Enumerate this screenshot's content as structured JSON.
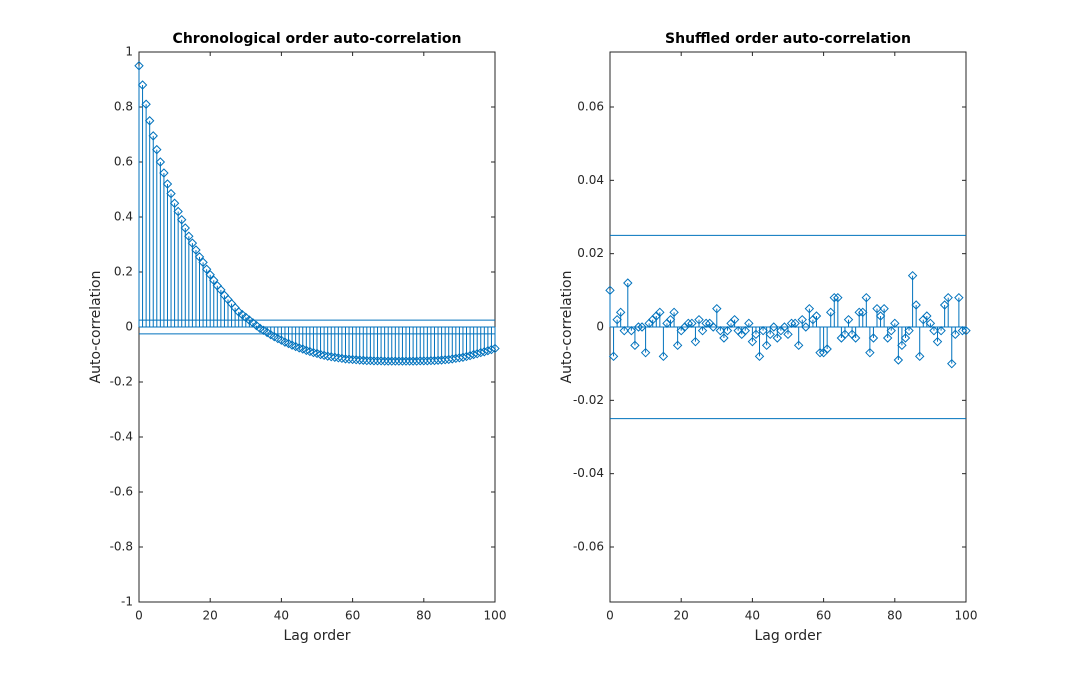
{
  "chart_data": [
    {
      "type": "stem",
      "title": "Chronological order auto-correlation",
      "xlabel": "Lag order",
      "ylabel": "Auto-correlation",
      "color": "#0072bd",
      "x": [
        0,
        1,
        2,
        3,
        4,
        5,
        6,
        7,
        8,
        9,
        10,
        11,
        12,
        13,
        14,
        15,
        16,
        17,
        18,
        19,
        20,
        21,
        22,
        23,
        24,
        25,
        26,
        27,
        28,
        29,
        30,
        31,
        32,
        33,
        34,
        35,
        36,
        37,
        38,
        39,
        40,
        41,
        42,
        43,
        44,
        45,
        46,
        47,
        48,
        49,
        50,
        51,
        52,
        53,
        54,
        55,
        56,
        57,
        58,
        59,
        60,
        61,
        62,
        63,
        64,
        65,
        66,
        67,
        68,
        69,
        70,
        71,
        72,
        73,
        74,
        75,
        76,
        77,
        78,
        79,
        80,
        81,
        82,
        83,
        84,
        85,
        86,
        87,
        88,
        89,
        90,
        91,
        92,
        93,
        94,
        95,
        96,
        97,
        98,
        99,
        100
      ],
      "values": [
        0.95,
        0.88,
        0.81,
        0.75,
        0.695,
        0.645,
        0.6,
        0.56,
        0.52,
        0.485,
        0.45,
        0.42,
        0.39,
        0.36,
        0.33,
        0.305,
        0.28,
        0.255,
        0.235,
        0.21,
        0.19,
        0.17,
        0.15,
        0.135,
        0.115,
        0.1,
        0.085,
        0.07,
        0.055,
        0.045,
        0.035,
        0.025,
        0.015,
        0.005,
        -0.005,
        -0.012,
        -0.02,
        -0.028,
        -0.035,
        -0.042,
        -0.048,
        -0.055,
        -0.06,
        -0.066,
        -0.071,
        -0.076,
        -0.08,
        -0.085,
        -0.089,
        -0.093,
        -0.096,
        -0.1,
        -0.103,
        -0.106,
        -0.108,
        -0.11,
        -0.112,
        -0.114,
        -0.116,
        -0.117,
        -0.118,
        -0.119,
        -0.12,
        -0.121,
        -0.122,
        -0.122,
        -0.123,
        -0.123,
        -0.123,
        -0.124,
        -0.124,
        -0.124,
        -0.124,
        -0.124,
        -0.124,
        -0.124,
        -0.124,
        -0.124,
        -0.124,
        -0.123,
        -0.123,
        -0.123,
        -0.122,
        -0.122,
        -0.121,
        -0.12,
        -0.119,
        -0.118,
        -0.116,
        -0.114,
        -0.112,
        -0.11,
        -0.107,
        -0.104,
        -0.1,
        -0.097,
        -0.093,
        -0.09,
        -0.086,
        -0.082,
        -0.078
      ],
      "bounds": [
        0.025,
        -0.025
      ],
      "xlim": [
        0,
        100
      ],
      "xticks": [
        0,
        20,
        40,
        60,
        80,
        100
      ],
      "ylim": [
        -1,
        1
      ],
      "yticks": [
        -1,
        -0.8,
        -0.6,
        -0.4,
        -0.2,
        0,
        0.2,
        0.4,
        0.6,
        0.8,
        1
      ]
    },
    {
      "type": "stem",
      "title": "Shuffled order auto-correlation",
      "xlabel": "Lag order",
      "ylabel": "Auto-correlation",
      "color": "#0072bd",
      "x": [
        0,
        1,
        2,
        3,
        4,
        5,
        6,
        7,
        8,
        9,
        10,
        11,
        12,
        13,
        14,
        15,
        16,
        17,
        18,
        19,
        20,
        21,
        22,
        23,
        24,
        25,
        26,
        27,
        28,
        29,
        30,
        31,
        32,
        33,
        34,
        35,
        36,
        37,
        38,
        39,
        40,
        41,
        42,
        43,
        44,
        45,
        46,
        47,
        48,
        49,
        50,
        51,
        52,
        53,
        54,
        55,
        56,
        57,
        58,
        59,
        60,
        61,
        62,
        63,
        64,
        65,
        66,
        67,
        68,
        69,
        70,
        71,
        72,
        73,
        74,
        75,
        76,
        77,
        78,
        79,
        80,
        81,
        82,
        83,
        84,
        85,
        86,
        87,
        88,
        89,
        90,
        91,
        92,
        93,
        94,
        95,
        96,
        97,
        98,
        99,
        100
      ],
      "values": [
        0.01,
        -0.008,
        0.002,
        0.004,
        -0.001,
        0.012,
        -0.001,
        -0.005,
        0,
        0,
        -0.007,
        0.001,
        0.002,
        0.003,
        0.004,
        -0.008,
        0.001,
        0.002,
        0.004,
        -0.005,
        -0.001,
        0,
        0.001,
        0.001,
        -0.004,
        0.002,
        -0.001,
        0.001,
        0.001,
        0,
        0.005,
        -0.001,
        -0.003,
        -0.001,
        0.001,
        0.002,
        -0.001,
        -0.002,
        -0.001,
        0.001,
        -0.004,
        -0.002,
        -0.008,
        -0.001,
        -0.005,
        -0.002,
        0,
        -0.003,
        -0.001,
        0,
        -0.002,
        0.001,
        0.001,
        -0.005,
        0.002,
        0,
        0.005,
        0.002,
        0.003,
        -0.007,
        -0.007,
        -0.006,
        0.004,
        0.008,
        0.008,
        -0.003,
        -0.002,
        0.002,
        -0.002,
        -0.003,
        0.004,
        0.004,
        0.008,
        -0.007,
        -0.003,
        0.005,
        0.003,
        0.005,
        -0.003,
        -0.001,
        0.001,
        -0.009,
        -0.005,
        -0.003,
        -0.001,
        0.014,
        0.006,
        -0.008,
        0.002,
        0.003,
        0.001,
        -0.001,
        -0.004,
        -0.001,
        0.006,
        0.008,
        -0.01,
        -0.002,
        0.008,
        -0.001,
        -0.001
      ],
      "bounds": [
        0.025,
        -0.025
      ],
      "xlim": [
        0,
        100
      ],
      "xticks": [
        0,
        20,
        40,
        60,
        80,
        100
      ],
      "ylim": [
        -0.075,
        0.075
      ],
      "yticks": [
        -0.06,
        -0.04,
        -0.02,
        0,
        0.02,
        0.04,
        0.06
      ]
    }
  ]
}
